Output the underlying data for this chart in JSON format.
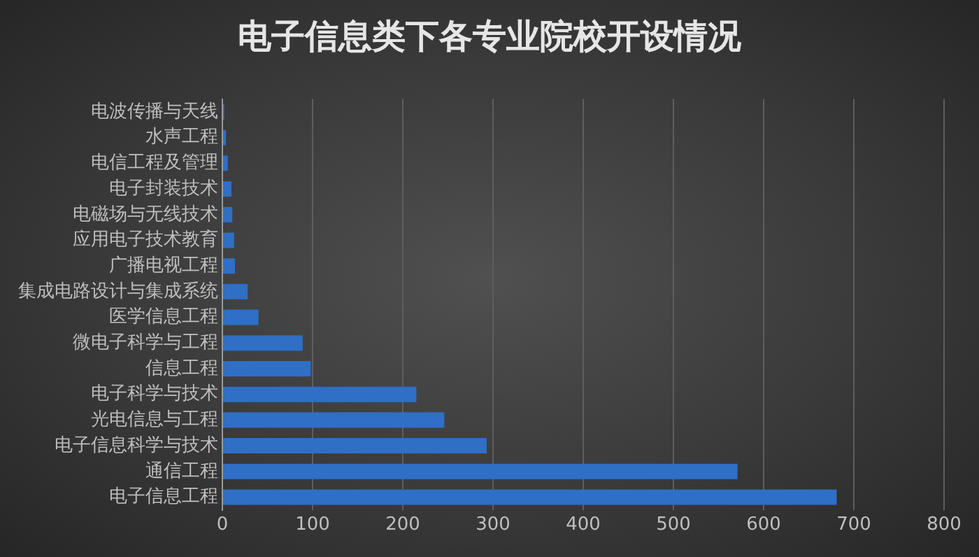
{
  "chart_data": {
    "type": "bar",
    "orientation": "horizontal",
    "title": "电子信息类下各专业院校开设情况",
    "categories": [
      "电波传播与天线",
      "水声工程",
      "电信工程及管理",
      "电子封装技术",
      "电磁场与无线技术",
      "应用电子技术教育",
      "广播电视工程",
      "集成电路设计与集成系统",
      "医学信息工程",
      "微电子科学与工程",
      "信息工程",
      "电子科学与技术",
      "光电信息与工程",
      "电子信息科学与技术",
      "通信工程",
      "电子信息工程"
    ],
    "values": [
      2,
      4,
      6,
      10,
      11,
      13,
      14,
      28,
      40,
      89,
      98,
      215,
      246,
      293,
      571,
      681
    ],
    "color": "#2f6fc6",
    "xlim": [
      0,
      800
    ],
    "xticks": [
      0,
      100,
      200,
      300,
      400,
      500,
      600,
      700,
      800
    ],
    "grid": "x",
    "legend": false
  }
}
